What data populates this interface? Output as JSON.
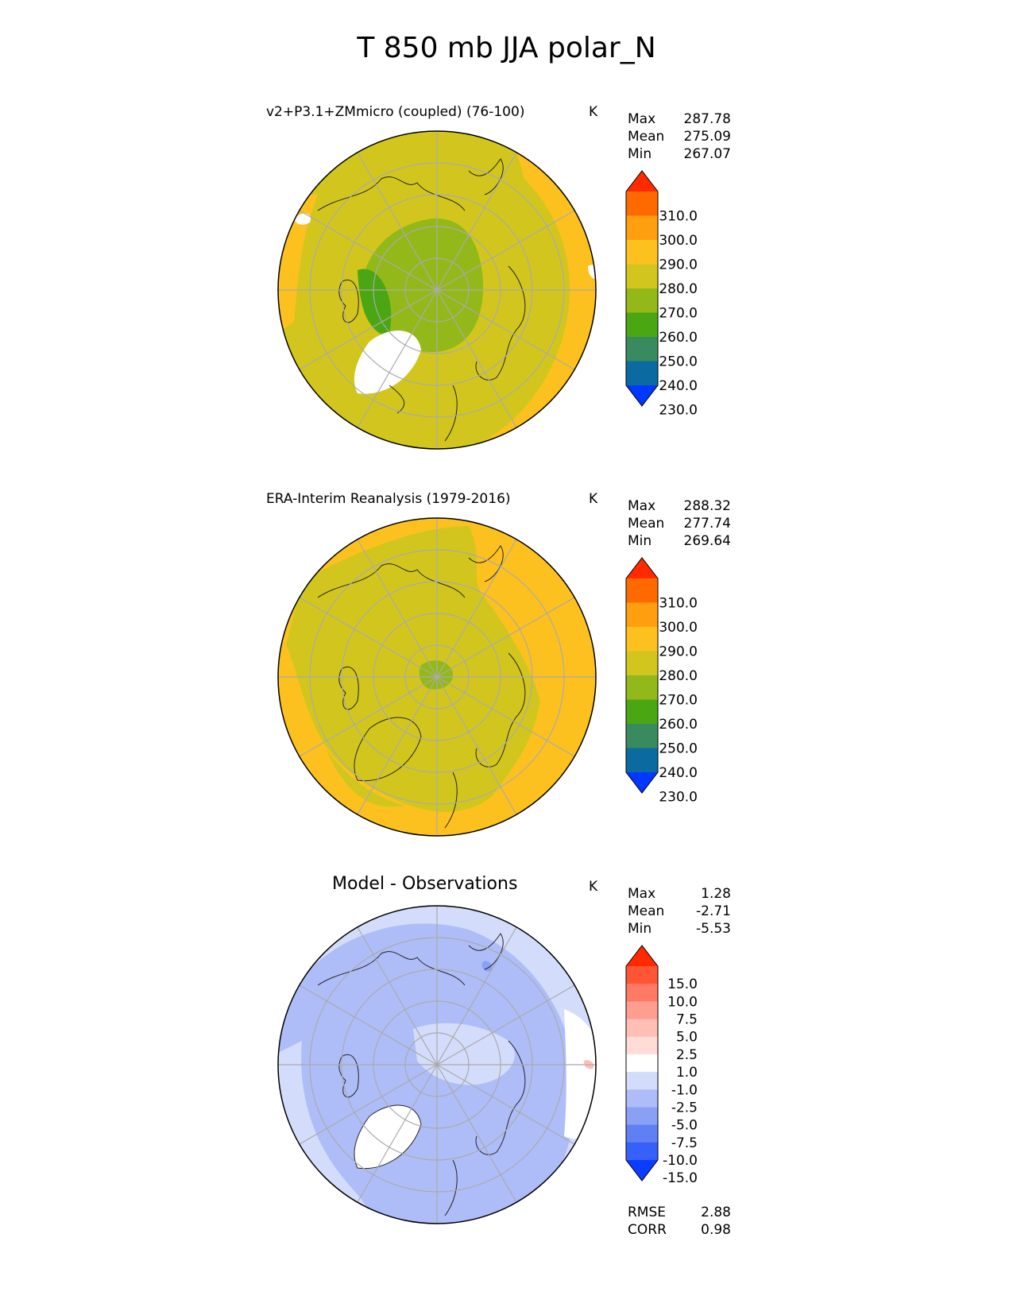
{
  "title": "T 850 mb JJA polar_N",
  "panels": [
    {
      "title": "v2+P3.1+ZMmicro (coupled) (76-100)",
      "units": "K",
      "stats": [
        {
          "label": "Max",
          "value": "287.78"
        },
        {
          "label": "Mean",
          "value": "275.09"
        },
        {
          "label": "Min",
          "value": "267.07"
        }
      ],
      "colorbar": {
        "labels": [
          "310.0",
          "300.0",
          "290.0",
          "280.0",
          "270.0",
          "260.0",
          "250.0",
          "240.0",
          "230.0"
        ],
        "colors": [
          "#ff2a00",
          "#ff6a00",
          "#ff9f10",
          "#fdc11f",
          "#d2c61e",
          "#93b81a",
          "#4aa612",
          "#3a8a60",
          "#0b6aa0",
          "#0038ff"
        ]
      }
    },
    {
      "title": "ERA-Interim Reanalysis (1979-2016)",
      "units": "K",
      "stats": [
        {
          "label": "Max",
          "value": "288.32"
        },
        {
          "label": "Mean",
          "value": "277.74"
        },
        {
          "label": "Min",
          "value": "269.64"
        }
      ],
      "colorbar": {
        "labels": [
          "310.0",
          "300.0",
          "290.0",
          "280.0",
          "270.0",
          "260.0",
          "250.0",
          "240.0",
          "230.0"
        ],
        "colors": [
          "#ff2a00",
          "#ff6a00",
          "#ff9f10",
          "#fdc11f",
          "#d2c61e",
          "#93b81a",
          "#4aa612",
          "#3a8a60",
          "#0b6aa0",
          "#0038ff"
        ]
      }
    },
    {
      "title": "Model - Observations",
      "units": "K",
      "stats": [
        {
          "label": "Max",
          "value": "1.28"
        },
        {
          "label": "Mean",
          "value": "-2.71"
        },
        {
          "label": "Min",
          "value": "-5.53"
        }
      ],
      "colorbar": {
        "labels": [
          "15.0",
          "10.0",
          "7.5",
          "5.0",
          "2.5",
          "1.0",
          "-1.0",
          "-2.5",
          "-5.0",
          "-7.5",
          "-10.0",
          "-15.0"
        ],
        "colors": [
          "#ff2a00",
          "#ff5535",
          "#ff7a65",
          "#ff9e8e",
          "#ffbfb4",
          "#ffdcd6",
          "#ffffff",
          "#d4dcfb",
          "#aebdf8",
          "#8aa0f5",
          "#5f80f5",
          "#3560fa",
          "#0c3cff"
        ]
      },
      "extra_stats": [
        {
          "label": "RMSE",
          "value": "2.88"
        },
        {
          "label": "CORR",
          "value": "0.98"
        }
      ]
    }
  ]
}
